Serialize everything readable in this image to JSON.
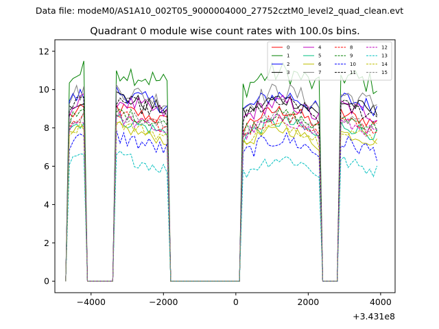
{
  "chart_data": {
    "type": "line",
    "suptitle": "Data file: modeM0/AS1A10_002T05_9000004000_27752cztM0_level2_quad_clean.evt",
    "title": "Quadrant 0 module wise count rates with 100.0s bins.",
    "xlabel": "",
    "ylabel": "",
    "offset_label": "+3.431e8",
    "xlim": [
      -5000,
      4400
    ],
    "ylim": [
      -0.6,
      12.6
    ],
    "xticks": [
      -4000,
      -2000,
      0,
      2000,
      4000
    ],
    "xtick_labels": [
      "−4000",
      "−2000",
      "0",
      "2000",
      "4000"
    ],
    "yticks": [
      0,
      2,
      4,
      6,
      8,
      10,
      12
    ],
    "ytick_labels": [
      "0",
      "2",
      "4",
      "6",
      "8",
      "10",
      "12"
    ],
    "grid": false,
    "legend_position": "top-right",
    "segments": [
      {
        "start": -4650,
        "end": -4150
      },
      {
        "start": -3350,
        "end": -1850
      },
      {
        "start": 150,
        "end": 2350
      },
      {
        "start": 2850,
        "end": 3950
      }
    ],
    "bin_width": 100,
    "series": [
      {
        "name": "0",
        "color": "#ff0000",
        "dash": "solid",
        "level": 8.6,
        "amp": 0.35
      },
      {
        "name": "1",
        "color": "#008000",
        "dash": "solid",
        "level": 10.6,
        "amp": 0.6
      },
      {
        "name": "2",
        "color": "#0000ff",
        "dash": "solid",
        "level": 9.4,
        "amp": 0.45
      },
      {
        "name": "3",
        "color": "#000000",
        "dash": "solid",
        "level": 9.2,
        "amp": 0.4
      },
      {
        "name": "4",
        "color": "#bf00bf",
        "dash": "solid",
        "level": 9.0,
        "amp": 0.45
      },
      {
        "name": "5",
        "color": "#00bf80",
        "dash": "solid",
        "level": 8.0,
        "amp": 0.35
      },
      {
        "name": "6",
        "color": "#bfbf00",
        "dash": "solid",
        "level": 7.6,
        "amp": 0.3
      },
      {
        "name": "7",
        "color": "#808080",
        "dash": "solid",
        "level": 9.6,
        "amp": 0.5
      },
      {
        "name": "8",
        "color": "#ff0000",
        "dash": "dashed",
        "level": 8.2,
        "amp": 0.35
      },
      {
        "name": "9",
        "color": "#008000",
        "dash": "dashed",
        "level": 8.4,
        "amp": 0.35
      },
      {
        "name": "10",
        "color": "#0000ff",
        "dash": "dashed",
        "level": 7.1,
        "amp": 0.45
      },
      {
        "name": "11",
        "color": "#000000",
        "dash": "dashed",
        "level": 9.0,
        "amp": 0.4
      },
      {
        "name": "12",
        "color": "#bf00bf",
        "dash": "dashed",
        "level": 8.1,
        "amp": 0.35
      },
      {
        "name": "13",
        "color": "#00bfbf",
        "dash": "dashed",
        "level": 6.1,
        "amp": 0.35
      },
      {
        "name": "14",
        "color": "#bfbf00",
        "dash": "dashed",
        "level": 7.8,
        "amp": 0.3
      },
      {
        "name": "15",
        "color": "#808080",
        "dash": "dashed",
        "level": 8.3,
        "amp": 0.35
      }
    ]
  }
}
